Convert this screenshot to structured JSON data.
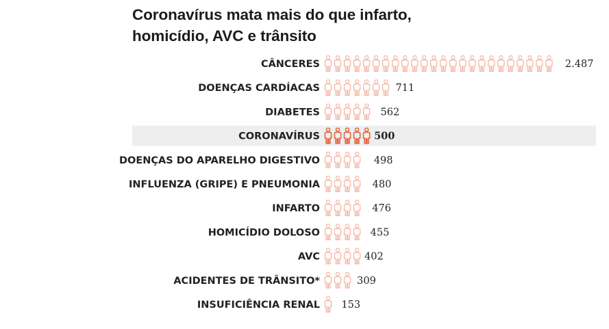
{
  "title_line1": "Coronavírus mata mais do que infarto,",
  "title_line2": "homicídio, AVC e trânsito",
  "colors": {
    "icon_stroke": "#f0a892",
    "icon_highlight": "#e2653f",
    "highlight_background": "#eeeeee",
    "text": "#222222"
  },
  "icon": "person-pictogram",
  "chart_data": {
    "type": "pictogram-bar",
    "title": "Coronavírus mata mais do que infarto, homicídio, AVC e trânsito",
    "highlight_category": "CORONAVÍRUS",
    "categories": [
      "CÂNCERES",
      "DOENÇAS CARDÍACAS",
      "DIABETES",
      "CORONAVÍRUS",
      "DOENÇAS DO APARELHO DIGESTIVO",
      "INFLUENZA (GRIPE) E PNEUMONIA",
      "INFARTO",
      "HOMICÍDIO DOLOSO",
      "AVC",
      "ACIDENTES DE TRÂNSITO*",
      "INSUFICIÊNCIA RENAL"
    ],
    "values": [
      2487,
      711,
      562,
      500,
      498,
      480,
      476,
      455,
      402,
      309,
      153
    ],
    "value_labels": [
      "2.487",
      "711",
      "562",
      "500",
      "498",
      "480",
      "476",
      "455",
      "402",
      "309",
      "153"
    ],
    "unit_per_icon": 100
  }
}
